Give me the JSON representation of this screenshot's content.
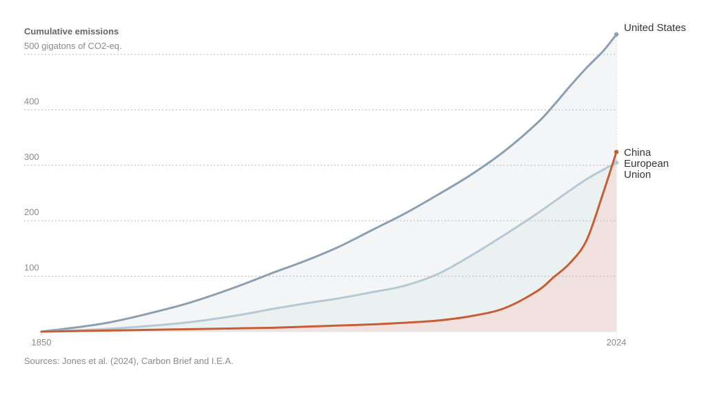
{
  "chart_data": {
    "type": "line",
    "title": "Cumulative emissions",
    "ylabel": "gigatons of CO2-eq.",
    "xlim": [
      1850,
      2024
    ],
    "ylim": [
      0,
      536
    ],
    "grid": true,
    "x_tick_labels": [
      "1850",
      "2024"
    ],
    "y_ticks": [
      100,
      200,
      300,
      400,
      500
    ],
    "y_tick_labels": [
      "100",
      "200",
      "300",
      "400",
      "500 gigatons of CO2-eq."
    ],
    "series": [
      {
        "name": "United States",
        "label_lines": [
          "United States"
        ],
        "color": "#8c9fb0",
        "fill": "#f3f5f7",
        "x": [
          1850,
          1870,
          1890,
          1900,
          1910,
          1920,
          1930,
          1940,
          1950,
          1960,
          1970,
          1980,
          1990,
          2000,
          2005,
          2010,
          2015,
          2020,
          2024
        ],
        "y": [
          0,
          16,
          44,
          62,
          83,
          106,
          128,
          153,
          183,
          213,
          247,
          283,
          325,
          376,
          408,
          443,
          476,
          506,
          536
        ]
      },
      {
        "name": "European Union",
        "label_lines": [
          "European",
          "Union"
        ],
        "color": "#b4c9d4",
        "fill": "#ebf0f1",
        "x": [
          1850,
          1870,
          1890,
          1900,
          1910,
          1920,
          1930,
          1940,
          1950,
          1960,
          1970,
          1980,
          1990,
          2000,
          2010,
          2015,
          2020,
          2024
        ],
        "y": [
          0,
          5,
          14,
          21,
          30,
          41,
          51,
          60,
          71,
          83,
          104,
          137,
          174,
          213,
          255,
          275,
          292,
          305
        ]
      },
      {
        "name": "China",
        "label_lines": [
          "China"
        ],
        "color": "#c65d34",
        "fill": "#f2e2df",
        "x": [
          1850,
          1870,
          1890,
          1900,
          1910,
          1920,
          1930,
          1940,
          1950,
          1960,
          1970,
          1980,
          1990,
          2000,
          2005,
          2010,
          2015,
          2020,
          2024
        ],
        "y": [
          0,
          2,
          4,
          5,
          6,
          7,
          9,
          11,
          13,
          16,
          20,
          28,
          42,
          73,
          98,
          124,
          165,
          250,
          324
        ]
      }
    ]
  },
  "source": "Sources: Jones et al. (2024), Carbon Brief and I.E.A."
}
